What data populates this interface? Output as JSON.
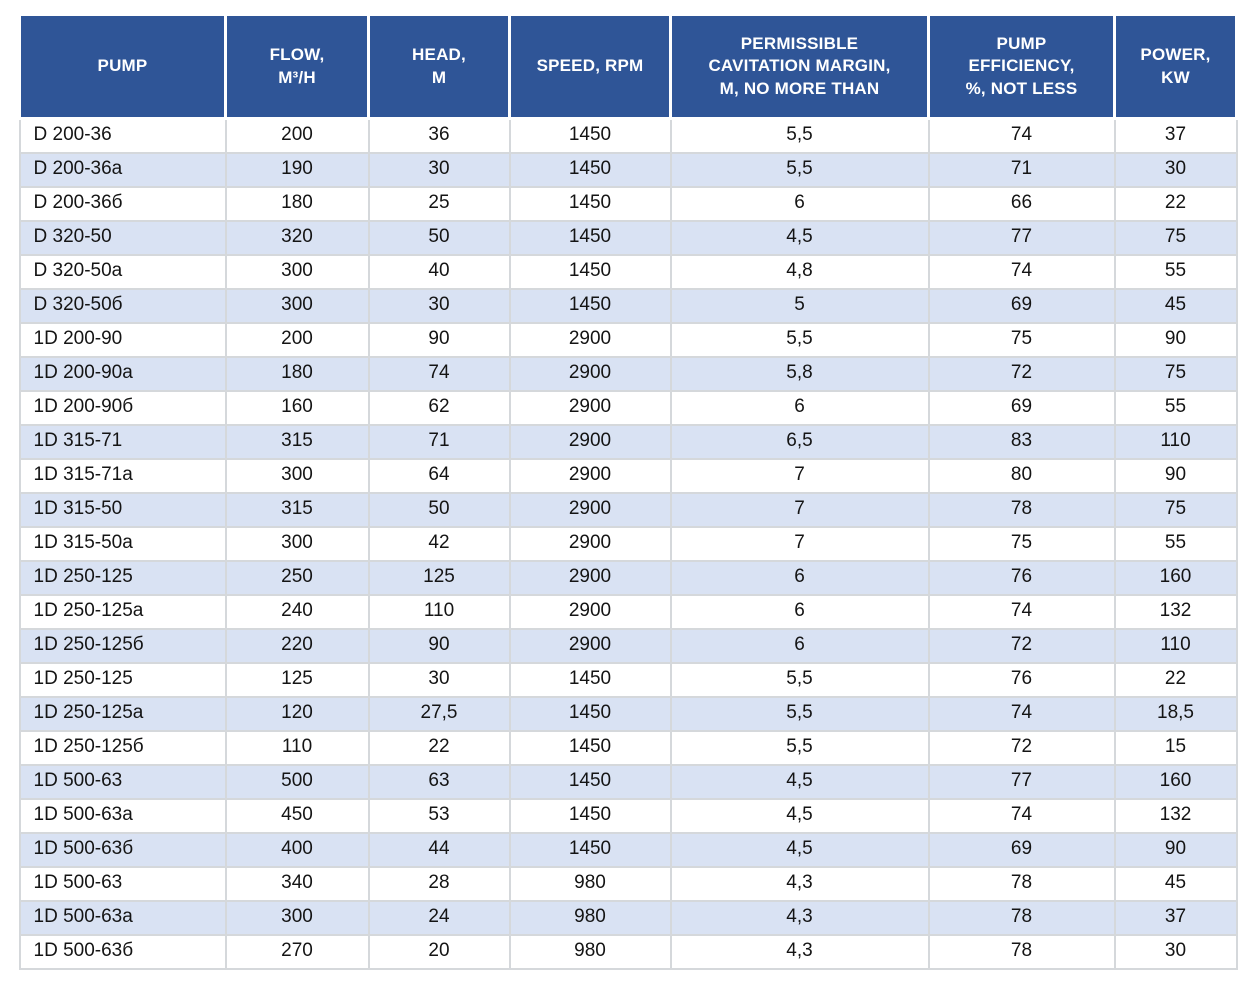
{
  "table": {
    "title": "pump-specifications",
    "colors": {
      "header_bg": "#2F5597",
      "header_text": "#FFFFFF",
      "stripe_bg": "#D9E2F3",
      "row_bg": "#FFFFFF",
      "grid": "#D5D8DB",
      "text": "#141414"
    },
    "columns": [
      {
        "key": "pump",
        "label": "PUMP"
      },
      {
        "key": "flow",
        "label": "FLOW,\nM³/H"
      },
      {
        "key": "head",
        "label": "HEAD,\nM"
      },
      {
        "key": "speed",
        "label": "SPEED, RPM"
      },
      {
        "key": "cavitation",
        "label": "PERMISSIBLE\nCAVITATION MARGIN,\nM, NO MORE THAN"
      },
      {
        "key": "efficiency",
        "label": "PUMP\nEFFICIENCY,\n%, NOT LESS"
      },
      {
        "key": "power",
        "label": "POWER,\nKW"
      }
    ],
    "rows": [
      [
        "D 200-36",
        "200",
        "36",
        "1450",
        "5,5",
        "74",
        "37"
      ],
      [
        "D 200-36a",
        "190",
        "30",
        "1450",
        "5,5",
        "71",
        "30"
      ],
      [
        "D 200-36б",
        "180",
        "25",
        "1450",
        "6",
        "66",
        "22"
      ],
      [
        "D 320-50",
        "320",
        "50",
        "1450",
        "4,5",
        "77",
        "75"
      ],
      [
        "D 320-50a",
        "300",
        "40",
        "1450",
        "4,8",
        "74",
        "55"
      ],
      [
        "D 320-50б",
        "300",
        "30",
        "1450",
        "5",
        "69",
        "45"
      ],
      [
        "1D 200-90",
        "200",
        "90",
        "2900",
        "5,5",
        "75",
        "90"
      ],
      [
        "1D 200-90a",
        "180",
        "74",
        "2900",
        "5,8",
        "72",
        "75"
      ],
      [
        "1D 200-90б",
        "160",
        "62",
        "2900",
        "6",
        "69",
        "55"
      ],
      [
        "1D 315-71",
        "315",
        "71",
        "2900",
        "6,5",
        "83",
        "110"
      ],
      [
        "1D 315-71a",
        "300",
        "64",
        "2900",
        "7",
        "80",
        "90"
      ],
      [
        "1D 315-50",
        "315",
        "50",
        "2900",
        "7",
        "78",
        "75"
      ],
      [
        "1D 315-50a",
        "300",
        "42",
        "2900",
        "7",
        "75",
        "55"
      ],
      [
        "1D 250-125",
        "250",
        "125",
        "2900",
        "6",
        "76",
        "160"
      ],
      [
        "1D 250-125a",
        "240",
        "110",
        "2900",
        "6",
        "74",
        "132"
      ],
      [
        "1D 250-125б",
        "220",
        "90",
        "2900",
        "6",
        "72",
        "110"
      ],
      [
        "1D 250-125",
        "125",
        "30",
        "1450",
        "5,5",
        "76",
        "22"
      ],
      [
        "1D 250-125a",
        "120",
        "27,5",
        "1450",
        "5,5",
        "74",
        "18,5"
      ],
      [
        "1D 250-125б",
        "110",
        "22",
        "1450",
        "5,5",
        "72",
        "15"
      ],
      [
        "1D 500-63",
        "500",
        "63",
        "1450",
        "4,5",
        "77",
        "160"
      ],
      [
        "1D 500-63a",
        "450",
        "53",
        "1450",
        "4,5",
        "74",
        "132"
      ],
      [
        "1D 500-63б",
        "400",
        "44",
        "1450",
        "4,5",
        "69",
        "90"
      ],
      [
        "1D 500-63",
        "340",
        "28",
        "980",
        "4,3",
        "78",
        "45"
      ],
      [
        "1D 500-63a",
        "300",
        "24",
        "980",
        "4,3",
        "78",
        "37"
      ],
      [
        "1D 500-63б",
        "270",
        "20",
        "980",
        "4,3",
        "78",
        "30"
      ]
    ]
  }
}
